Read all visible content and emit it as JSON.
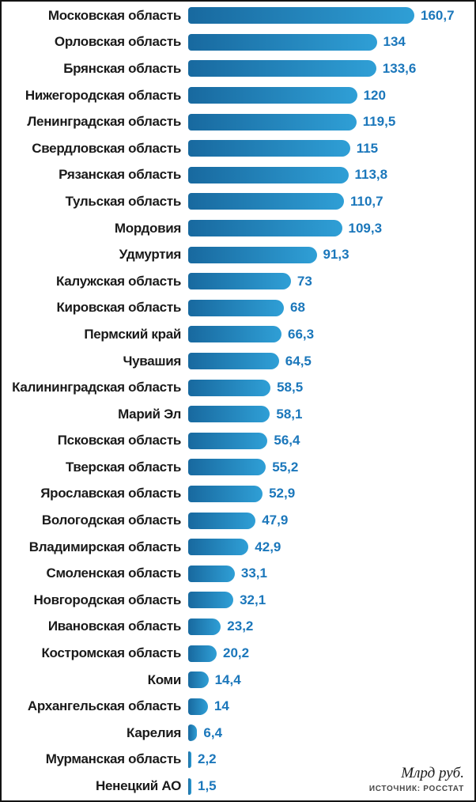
{
  "chart_data": {
    "type": "bar",
    "orientation": "horizontal",
    "title": "",
    "xlabel": "",
    "ylabel": "",
    "xlim": [
      0,
      170
    ],
    "grid": false,
    "legend": "none",
    "unit": "Млрд руб.",
    "source": "ИСТОЧНИК: РОССТАТ",
    "bar_color_start": "#18699f",
    "bar_color_end": "#2f9fd6",
    "value_color": "#1b77bb",
    "categories": [
      "Московская область",
      "Орловская область",
      "Брянская область",
      "Нижегородская область",
      "Ленинградская область",
      "Свердловская область",
      "Рязанская область",
      "Тульская область",
      "Мордовия",
      "Удмуртия",
      "Калужская область",
      "Кировская область",
      "Пермский край",
      "Чувашия",
      "Калининградская область",
      "Марий Эл",
      "Псковская область",
      "Тверская область",
      "Ярославская область",
      "Вологодская область",
      "Владимирская область",
      "Смоленская область",
      "Новгородская область",
      "Ивановская область",
      "Костромская область",
      "Коми",
      "Архангельская область",
      "Карелия",
      "Мурманская область",
      "Ненецкий АО"
    ],
    "values": [
      160.7,
      134,
      133.6,
      120,
      119.5,
      115,
      113.8,
      110.7,
      109.3,
      91.3,
      73,
      68,
      66.3,
      64.5,
      58.5,
      58.1,
      56.4,
      55.2,
      52.9,
      47.9,
      42.9,
      33.1,
      32.1,
      23.2,
      20.2,
      14.4,
      14,
      6.4,
      2.2,
      1.5
    ],
    "value_labels": [
      "160,7",
      "134",
      "133,6",
      "120",
      "119,5",
      "115",
      "113,8",
      "110,7",
      "109,3",
      "91,3",
      "73",
      "68",
      "66,3",
      "64,5",
      "58,5",
      "58,1",
      "56,4",
      "55,2",
      "52,9",
      "47,9",
      "42,9",
      "33,1",
      "32,1",
      "23,2",
      "20,2",
      "14,4",
      "14",
      "6,4",
      "2,2",
      "1,5"
    ]
  }
}
